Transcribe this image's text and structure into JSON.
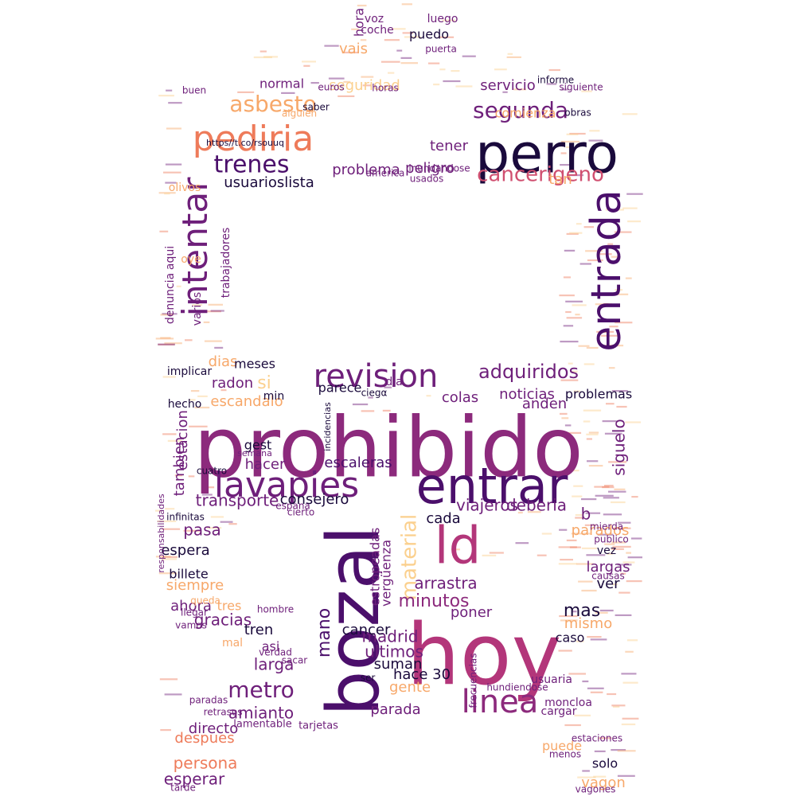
{
  "palette": {
    "darkest": "#1a0a3c",
    "deep_purple": "#4b0f6b",
    "purple": "#6e1f7a",
    "magenta": "#8c2a7c",
    "pink": "#b3367a",
    "rose": "#d04f70",
    "coral": "#ee7b5a",
    "peach": "#f7a86a",
    "sand": "#fbd08e"
  },
  "words": [
    {
      "text": "prohibido",
      "c": "magenta"
    },
    {
      "text": "entrar",
      "c": "deep_purple"
    },
    {
      "text": "hoy",
      "c": "pink"
    },
    {
      "text": "bozal",
      "c": "deep_purple"
    },
    {
      "text": "perro",
      "c": "darkest"
    },
    {
      "text": "entrada",
      "c": "deep_purple"
    },
    {
      "text": "intentar",
      "c": "purple"
    },
    {
      "text": "pediria",
      "c": "coral"
    },
    {
      "text": "ld",
      "c": "pink"
    },
    {
      "text": "linea",
      "c": "magenta"
    },
    {
      "text": "revision",
      "c": "purple"
    },
    {
      "text": "lavapies",
      "c": "purple"
    },
    {
      "text": "trenes",
      "c": "deep_purple"
    },
    {
      "text": "cancerigeno",
      "c": "rose"
    },
    {
      "text": "segunda",
      "c": "purple"
    },
    {
      "text": "asbesto",
      "c": "peach"
    },
    {
      "text": "adquiridos",
      "c": "purple"
    },
    {
      "text": "material",
      "c": "sand"
    },
    {
      "text": "metro",
      "c": "purple"
    },
    {
      "text": "minutos",
      "c": "magenta"
    },
    {
      "text": "mano",
      "c": "deep_purple"
    },
    {
      "text": "amianto",
      "c": "purple"
    },
    {
      "text": "usuarioslista",
      "c": "darkest"
    },
    {
      "text": "seguridad",
      "c": "sand"
    },
    {
      "text": "servicio",
      "c": "purple"
    },
    {
      "text": "comienza",
      "c": "peach"
    },
    {
      "text": "problema",
      "c": "purple"
    },
    {
      "text": "peligro",
      "c": "purple"
    },
    {
      "text": "tener",
      "c": "purple"
    },
    {
      "text": "normal",
      "c": "purple"
    },
    {
      "text": "escandalo",
      "c": "peach"
    },
    {
      "text": "dias",
      "c": "peach"
    },
    {
      "text": "meses",
      "c": "darkest"
    },
    {
      "text": "radon",
      "c": "purple"
    },
    {
      "text": "noticias",
      "c": "purple"
    },
    {
      "text": "colas",
      "c": "purple"
    },
    {
      "text": "anden",
      "c": "purple"
    },
    {
      "text": "problemas",
      "c": "darkest"
    },
    {
      "text": "escaleras",
      "c": "deep_purple"
    },
    {
      "text": "consejero",
      "c": "darkest"
    },
    {
      "text": "transporte",
      "c": "purple"
    },
    {
      "text": "viajeros",
      "c": "purple"
    },
    {
      "text": "deberia",
      "c": "purple"
    },
    {
      "text": "cada",
      "c": "darkest"
    },
    {
      "text": "espera",
      "c": "darkest"
    },
    {
      "text": "billete",
      "c": "darkest"
    },
    {
      "text": "siempre",
      "c": "peach"
    },
    {
      "text": "ahora",
      "c": "purple"
    },
    {
      "text": "gracias",
      "c": "purple"
    },
    {
      "text": "madrid",
      "c": "purple"
    },
    {
      "text": "ultimos",
      "c": "purple"
    },
    {
      "text": "cancer",
      "c": "darkest"
    },
    {
      "text": "tren",
      "c": "darkest"
    },
    {
      "text": "larga",
      "c": "purple"
    },
    {
      "text": "suman",
      "c": "darkest"
    },
    {
      "text": "hace 30",
      "c": "darkest"
    },
    {
      "text": "gente",
      "c": "peach"
    },
    {
      "text": "parada",
      "c": "purple"
    },
    {
      "text": "directo",
      "c": "purple"
    },
    {
      "text": "despues",
      "c": "coral"
    },
    {
      "text": "persona",
      "c": "coral"
    },
    {
      "text": "esperar",
      "c": "purple"
    },
    {
      "text": "puede",
      "c": "peach"
    },
    {
      "text": "solo",
      "c": "darkest"
    },
    {
      "text": "vagon",
      "c": "peach"
    },
    {
      "text": "mas",
      "c": "darkest"
    },
    {
      "text": "mismo",
      "c": "peach"
    },
    {
      "text": "caso",
      "c": "darkest"
    },
    {
      "text": "poner",
      "c": "purple"
    },
    {
      "text": "arrastra",
      "c": "purple"
    },
    {
      "text": "largas",
      "c": "purple"
    },
    {
      "text": "parados",
      "c": "peach"
    },
    {
      "text": "vez",
      "c": "darkest"
    },
    {
      "text": "pasa",
      "c": "purple"
    },
    {
      "text": "estacion",
      "c": "purple"
    },
    {
      "text": "tambien",
      "c": "purple"
    },
    {
      "text": "vergüenza",
      "c": "purple"
    },
    {
      "text": "estropeadas",
      "c": "purple"
    },
    {
      "text": "parece",
      "c": "darkest"
    },
    {
      "text": "dia",
      "c": "purple"
    },
    {
      "text": "min",
      "c": "darkest"
    },
    {
      "text": "si",
      "c": "sand"
    },
    {
      "text": "gest",
      "c": "darkest"
    },
    {
      "text": "hacer",
      "c": "purple"
    },
    {
      "text": "siguelo",
      "c": "purple"
    },
    {
      "text": "ver",
      "c": "darkest"
    },
    {
      "text": "vais",
      "c": "peach"
    },
    {
      "text": "puedo",
      "c": "darkest"
    },
    {
      "text": "hora",
      "c": "purple"
    },
    {
      "text": "voz",
      "c": "purple"
    },
    {
      "text": "coche",
      "c": "purple"
    },
    {
      "text": "luego",
      "c": "purple"
    },
    {
      "text": "trabajadores",
      "c": "purple"
    },
    {
      "text": "olivos",
      "c": "peach"
    },
    {
      "text": "oye",
      "c": "peach"
    },
    {
      "text": "varios",
      "c": "purple"
    },
    {
      "text": "denuncia",
      "c": "purple"
    },
    {
      "text": "aqui",
      "c": "purple"
    },
    {
      "text": "implicar",
      "c": "darkest"
    },
    {
      "text": "hecho",
      "c": "darkest"
    },
    {
      "text": "tres",
      "c": "peach"
    },
    {
      "text": "asi",
      "c": "purple"
    },
    {
      "text": "mal",
      "c": "peach"
    },
    {
      "text": "b",
      "c": "purple"
    },
    {
      "text": "tan",
      "c": "peach"
    },
    {
      "text": "https//t.co/rsouuq",
      "c": "darkest"
    },
    {
      "text": "cuatro",
      "c": "darkest"
    },
    {
      "text": "semana",
      "c": "purple"
    },
    {
      "text": "incidencias",
      "c": "darkest"
    },
    {
      "text": "infinitas",
      "c": "darkest"
    },
    {
      "text": "responsabilidades",
      "c": "purple"
    },
    {
      "text": "queda",
      "c": "peach"
    },
    {
      "text": "frecuencias",
      "c": "purple"
    },
    {
      "text": "moncloa",
      "c": "purple"
    },
    {
      "text": "usuaria",
      "c": "purple"
    },
    {
      "text": "ser",
      "c": "darkest"
    },
    {
      "text": "hundiendose",
      "c": "purple"
    },
    {
      "text": "cargar",
      "c": "purple"
    },
    {
      "text": "lamentable",
      "c": "purple"
    },
    {
      "text": "tarjetas",
      "c": "purple"
    },
    {
      "text": "paradas",
      "c": "purple"
    },
    {
      "text": "retrasos",
      "c": "purple"
    },
    {
      "text": "vagones",
      "c": "purple"
    },
    {
      "text": "tarde",
      "c": "purple"
    },
    {
      "text": "estaciones",
      "c": "purple"
    },
    {
      "text": "menos",
      "c": "purple"
    },
    {
      "text": "hombre",
      "c": "purple"
    },
    {
      "text": "verdad",
      "c": "purple"
    },
    {
      "text": "sacar",
      "c": "purple"
    },
    {
      "text": "llegar",
      "c": "purple"
    },
    {
      "text": "vamos",
      "c": "purple"
    },
    {
      "text": "ciegα",
      "c": "darkest"
    },
    {
      "text": "puerta",
      "c": "purple"
    },
    {
      "text": "euros",
      "c": "purple"
    },
    {
      "text": "america",
      "c": "purple"
    },
    {
      "text": "horas",
      "c": "purple"
    },
    {
      "text": "inundandose",
      "c": "purple"
    },
    {
      "text": "informe",
      "c": "darkest"
    },
    {
      "text": "obras",
      "c": "darkest"
    },
    {
      "text": "siguiente",
      "c": "purple"
    },
    {
      "text": "usados",
      "c": "purple"
    },
    {
      "text": "buen",
      "c": "purple"
    },
    {
      "text": "alguien",
      "c": "peach"
    },
    {
      "text": "saber",
      "c": "darkest"
    },
    {
      "text": "mierda",
      "c": "purple"
    },
    {
      "text": "publico",
      "c": "purple"
    },
    {
      "text": "causas",
      "c": "purple"
    },
    {
      "text": "cierto",
      "c": "purple"
    },
    {
      "text": "espana",
      "c": "purple"
    }
  ]
}
